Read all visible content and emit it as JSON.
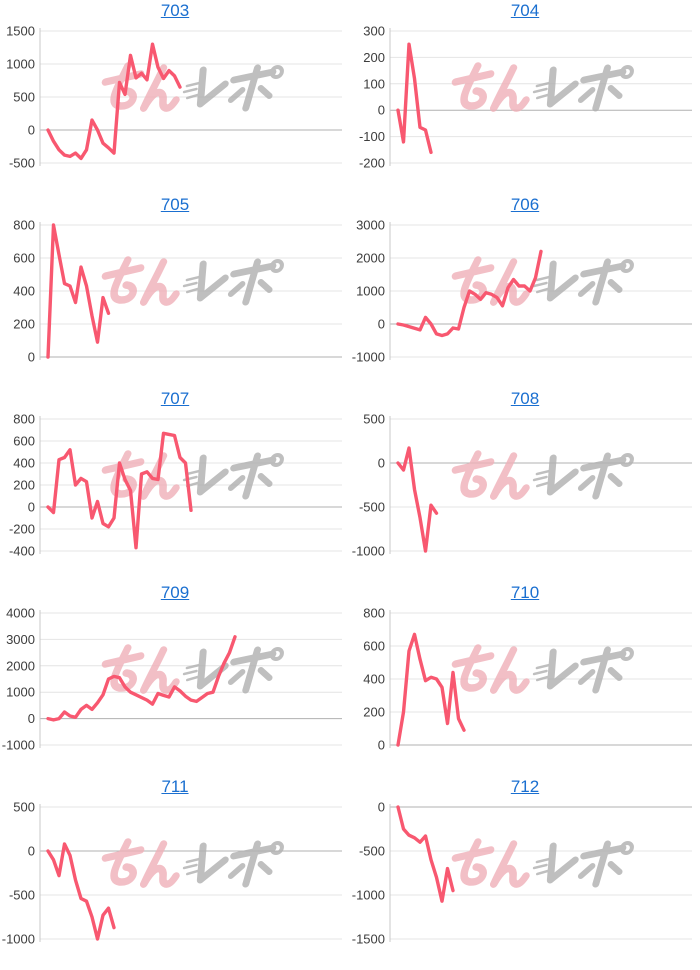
{
  "page": {
    "background": "#ffffff",
    "description_labels": []
  },
  "style": {
    "line_color": "#f85870",
    "grid_color": "#e4e4e4",
    "zero_line_color": "#b0b0b0",
    "axis_line_color": "#c8c8c8",
    "tick_label_color": "#3d3d3d",
    "title_link_color": "#1a6fd0",
    "watermark_pink_color": "#f0b0b8",
    "watermark_gray_color": "#b0b0b0"
  },
  "watermark": {
    "text": "みんレポ",
    "pink_text": "みん",
    "gray_text": "レポ"
  },
  "chart_data": [
    {
      "type": "line",
      "title": "703",
      "ylim": [
        -500,
        1500
      ],
      "yticks": [
        1500,
        1000,
        500,
        0,
        -500
      ],
      "values": [
        0,
        -170,
        -300,
        -380,
        -400,
        -350,
        -430,
        -300,
        150,
        0,
        -200,
        -270,
        -350,
        720,
        540,
        1130,
        790,
        860,
        760,
        1300,
        950,
        780,
        900,
        820,
        650
      ]
    },
    {
      "type": "line",
      "title": "704",
      "ylim": [
        -200,
        300
      ],
      "yticks": [
        300,
        200,
        100,
        0,
        -100,
        -200
      ],
      "values": [
        0,
        -120,
        250,
        120,
        -65,
        -75,
        -160
      ]
    },
    {
      "type": "line",
      "title": "705",
      "ylim": [
        0,
        800
      ],
      "yticks": [
        800,
        600,
        400,
        200,
        0
      ],
      "values": [
        0,
        800,
        620,
        445,
        430,
        330,
        545,
        430,
        250,
        90,
        360,
        265
      ]
    },
    {
      "type": "line",
      "title": "706",
      "ylim": [
        -1000,
        3000
      ],
      "yticks": [
        3000,
        2000,
        1000,
        0,
        -1000
      ],
      "values": [
        0,
        -30,
        -80,
        -130,
        -180,
        200,
        0,
        -300,
        -350,
        -300,
        -120,
        -150,
        500,
        1000,
        900,
        750,
        950,
        900,
        800,
        550,
        1100,
        1350,
        1150,
        1150,
        1000,
        1400,
        2200
      ]
    },
    {
      "type": "line",
      "title": "707",
      "ylim": [
        -400,
        800
      ],
      "yticks": [
        800,
        600,
        400,
        200,
        0,
        -200,
        -400
      ],
      "values": [
        0,
        -50,
        430,
        450,
        520,
        200,
        260,
        230,
        -100,
        50,
        -150,
        -180,
        -100,
        400,
        250,
        150,
        -370,
        300,
        320,
        260,
        250,
        670,
        660,
        650,
        450,
        400,
        -30
      ]
    },
    {
      "type": "line",
      "title": "708",
      "ylim": [
        -1000,
        500
      ],
      "yticks": [
        500,
        0,
        -500,
        -1000
      ],
      "values": [
        0,
        -80,
        170,
        -300,
        -620,
        -1000,
        -480,
        -570
      ]
    },
    {
      "type": "line",
      "title": "709",
      "ylim": [
        -1000,
        4000
      ],
      "yticks": [
        4000,
        3000,
        2000,
        1000,
        0,
        -1000
      ],
      "values": [
        0,
        -50,
        0,
        250,
        100,
        50,
        350,
        500,
        350,
        600,
        900,
        1500,
        1600,
        1550,
        1200,
        1000,
        900,
        800,
        700,
        550,
        950,
        880,
        820,
        1200,
        1050,
        850,
        700,
        650,
        800,
        950,
        1000,
        1600,
        2100,
        2500,
        3100
      ]
    },
    {
      "type": "line",
      "title": "710",
      "ylim": [
        0,
        800
      ],
      "yticks": [
        800,
        600,
        400,
        200,
        0
      ],
      "values": [
        0,
        200,
        570,
        670,
        520,
        390,
        410,
        400,
        350,
        130,
        440,
        160,
        90
      ]
    },
    {
      "type": "line",
      "title": "711",
      "ylim": [
        -1000,
        500
      ],
      "yticks": [
        500,
        0,
        -500,
        -1000
      ],
      "values": [
        0,
        -100,
        -280,
        80,
        -50,
        -330,
        -540,
        -570,
        -750,
        -1000,
        -730,
        -650,
        -870
      ]
    },
    {
      "type": "line",
      "title": "712",
      "ylim": [
        -1500,
        0
      ],
      "yticks": [
        0,
        -500,
        -1000,
        -1500
      ],
      "values": [
        0,
        -250,
        -320,
        -350,
        -400,
        -330,
        -600,
        -800,
        -1070,
        -700,
        -950
      ]
    }
  ]
}
